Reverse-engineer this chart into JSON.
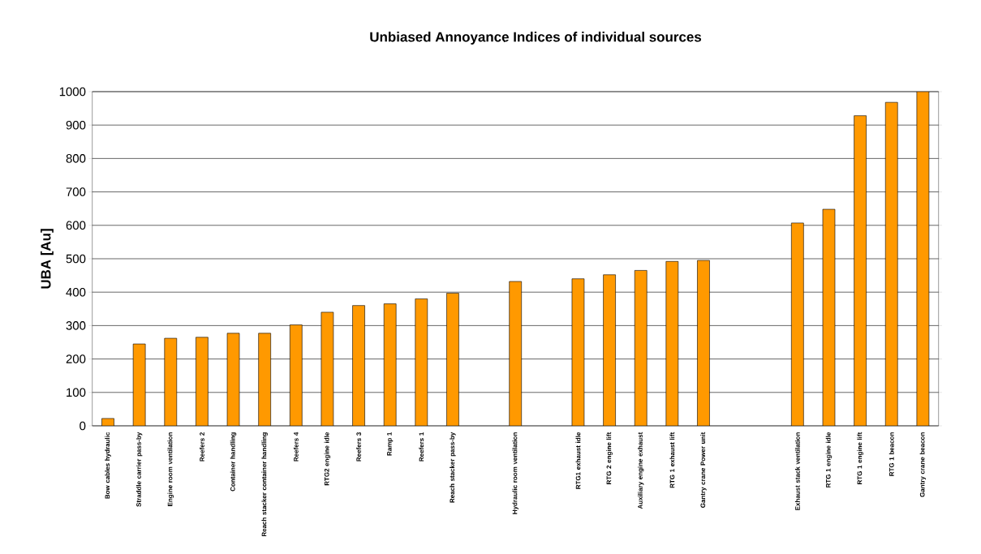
{
  "chart_data": {
    "type": "bar",
    "title": "Unbiased Annoyance Indices of individual sources",
    "ylabel": "UBA [Au]",
    "categories": [
      "Bow cables hydraulic",
      "Straddle carrier pass-by",
      "Engine room ventilation",
      "Reefers 2",
      "Container handling",
      "Reach stacker container handling",
      "Reefers 4",
      "RTG2  engine idle",
      "Reefers 3",
      "Ramp 1",
      "Reefers 1",
      "Reach stacker pass-by",
      null,
      "Hydraulic room ventilation",
      null,
      "RTG1 exhaust idle",
      "RTG 2 engine lift",
      "Auxiliary engine exhaust",
      "RTG 1 exhaust lift",
      "Gantry crane Power unit",
      null,
      null,
      "Exhaust stack ventilation",
      "RTG 1 engine idle",
      "RTG 1 engine lift",
      "RTG 1 beacon",
      "Gantry crane  beacon"
    ],
    "values": [
      22,
      245,
      262,
      265,
      277,
      277,
      302,
      340,
      360,
      365,
      380,
      397,
      null,
      432,
      null,
      440,
      452,
      465,
      492,
      495,
      null,
      null,
      607,
      648,
      928,
      968,
      1000
    ],
    "color": "#ff9900",
    "ylim": [
      0,
      1000
    ],
    "yticks": [
      0,
      100,
      200,
      300,
      400,
      500,
      600,
      700,
      800,
      900,
      1000
    ],
    "grid": "y"
  }
}
